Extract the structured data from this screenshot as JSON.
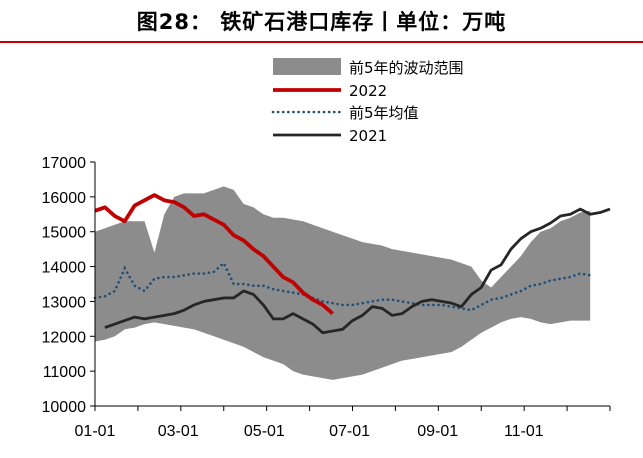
{
  "title": "图28：   铁矿石港口库存丨单位：万吨",
  "chart_data": {
    "type": "line",
    "title": "图28：   铁矿石港口库存丨单位：万吨",
    "xlabel": "",
    "ylabel": "",
    "ylim": [
      10000,
      17000
    ],
    "yticks": [
      10000,
      11000,
      12000,
      13000,
      14000,
      15000,
      16000,
      17000
    ],
    "x_range_weeks": [
      0,
      52
    ],
    "xtick_labels": [
      "01-01",
      "03-01",
      "05-01",
      "07-01",
      "09-01",
      "11-01"
    ],
    "xtick_weeks": [
      0,
      8.4,
      17.1,
      25.7,
      34.6,
      43.3
    ],
    "grid": false,
    "legend_position": "top",
    "colors": {
      "band": "#8c8c8c",
      "y2022": "#c00000",
      "avg5": "#1f4e79",
      "y2021": "#262626"
    },
    "band_legend": "前5年的波动范围",
    "series": [
      {
        "name": "前5年的波动范围",
        "kind": "band",
        "x": [
          0,
          1,
          2,
          3,
          4,
          5,
          6,
          7,
          8,
          9,
          10,
          11,
          12,
          13,
          14,
          15,
          16,
          17,
          18,
          19,
          20,
          21,
          22,
          23,
          24,
          25,
          26,
          27,
          28,
          29,
          30,
          31,
          32,
          33,
          34,
          35,
          36,
          37,
          38,
          39,
          40,
          41,
          42,
          43,
          44,
          45,
          46,
          47,
          48,
          49,
          50
        ],
        "high": [
          15000,
          15100,
          15200,
          15300,
          15300,
          15300,
          14400,
          15500,
          16000,
          16100,
          16100,
          16100,
          16200,
          16300,
          16200,
          15800,
          15700,
          15500,
          15400,
          15400,
          15350,
          15300,
          15200,
          15100,
          15000,
          14900,
          14800,
          14700,
          14650,
          14600,
          14500,
          14450,
          14400,
          14350,
          14300,
          14250,
          14200,
          14100,
          14000,
          13600,
          13400,
          13700,
          14000,
          14300,
          14700,
          15000,
          15100,
          15300,
          15400,
          15550,
          15600
        ],
        "low": [
          11850,
          11900,
          12000,
          12200,
          12250,
          12350,
          12400,
          12350,
          12300,
          12250,
          12200,
          12100,
          12000,
          11900,
          11800,
          11700,
          11550,
          11400,
          11300,
          11200,
          11000,
          10900,
          10850,
          10800,
          10750,
          10800,
          10850,
          10900,
          11000,
          11100,
          11200,
          11300,
          11350,
          11400,
          11450,
          11500,
          11550,
          11700,
          11900,
          12100,
          12250,
          12400,
          12500,
          12550,
          12500,
          12400,
          12350,
          12400,
          12450,
          12450,
          12450
        ]
      },
      {
        "name": "2022",
        "kind": "line",
        "x": [
          0,
          1,
          2,
          3,
          4,
          5,
          6,
          7,
          8,
          9,
          10,
          11,
          12,
          13,
          14,
          15,
          16,
          17,
          18,
          19,
          20,
          21,
          22,
          23,
          24
        ],
        "y": [
          15600,
          15700,
          15450,
          15300,
          15750,
          15900,
          16050,
          15900,
          15850,
          15700,
          15450,
          15500,
          15350,
          15200,
          14900,
          14750,
          14500,
          14300,
          14000,
          13700,
          13550,
          13250,
          13050,
          12900,
          12650
        ]
      },
      {
        "name": "前5年均值",
        "kind": "dotted",
        "x": [
          0,
          1,
          2,
          3,
          4,
          5,
          6,
          7,
          8,
          9,
          10,
          11,
          12,
          13,
          14,
          15,
          16,
          17,
          18,
          19,
          20,
          21,
          22,
          23,
          24,
          25,
          26,
          27,
          28,
          29,
          30,
          31,
          32,
          33,
          34,
          35,
          36,
          37,
          38,
          39,
          40,
          41,
          42,
          43,
          44,
          45,
          46,
          47,
          48,
          49,
          50
        ],
        "y": [
          13100,
          13150,
          13300,
          13950,
          13450,
          13300,
          13650,
          13700,
          13700,
          13750,
          13800,
          13800,
          13850,
          14100,
          13500,
          13500,
          13450,
          13450,
          13350,
          13300,
          13250,
          13200,
          13100,
          13000,
          12950,
          12900,
          12900,
          12950,
          13000,
          13050,
          13050,
          13000,
          12950,
          12900,
          12900,
          12900,
          12850,
          12800,
          12750,
          12900,
          13050,
          13100,
          13200,
          13300,
          13450,
          13500,
          13600,
          13650,
          13700,
          13800,
          13750
        ]
      },
      {
        "name": "2021",
        "kind": "line",
        "x": [
          1,
          2,
          3,
          4,
          5,
          6,
          7,
          8,
          9,
          10,
          11,
          12,
          13,
          14,
          15,
          16,
          17,
          18,
          19,
          20,
          21,
          22,
          23,
          24,
          25,
          26,
          27,
          28,
          29,
          30,
          31,
          32,
          33,
          34,
          35,
          36,
          37,
          38,
          39,
          40,
          41,
          42,
          43,
          44,
          45,
          46,
          47,
          48,
          49,
          50,
          51,
          52
        ],
        "y": [
          12250,
          12350,
          12450,
          12550,
          12500,
          12550,
          12600,
          12650,
          12750,
          12900,
          13000,
          13050,
          13100,
          13100,
          13300,
          13200,
          12900,
          12500,
          12500,
          12650,
          12500,
          12350,
          12100,
          12150,
          12200,
          12450,
          12600,
          12850,
          12800,
          12600,
          12650,
          12850,
          13000,
          13050,
          13000,
          12950,
          12850,
          13200,
          13400,
          13900,
          14050,
          14500,
          14800,
          15000,
          15100,
          15250,
          15450,
          15500,
          15650,
          15500,
          15550,
          15650
        ]
      }
    ]
  }
}
